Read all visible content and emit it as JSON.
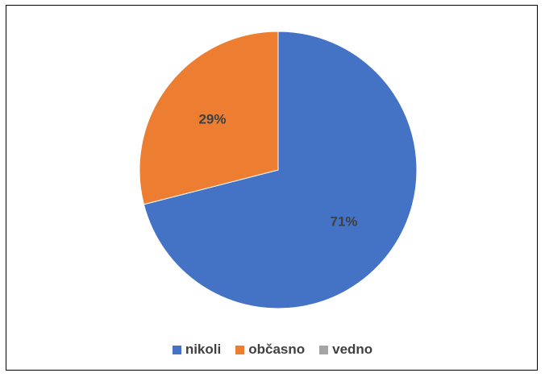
{
  "chart_data": {
    "type": "pie",
    "title": "",
    "slices": [
      {
        "name": "nikoli",
        "value": 71,
        "label": "71%",
        "color": "#4472C4"
      },
      {
        "name": "občasno",
        "value": 29,
        "label": "29%",
        "color": "#ED7D31"
      },
      {
        "name": "vedno",
        "value": 0,
        "label": "",
        "color": "#A5A5A5"
      }
    ],
    "legend_position": "bottom"
  }
}
